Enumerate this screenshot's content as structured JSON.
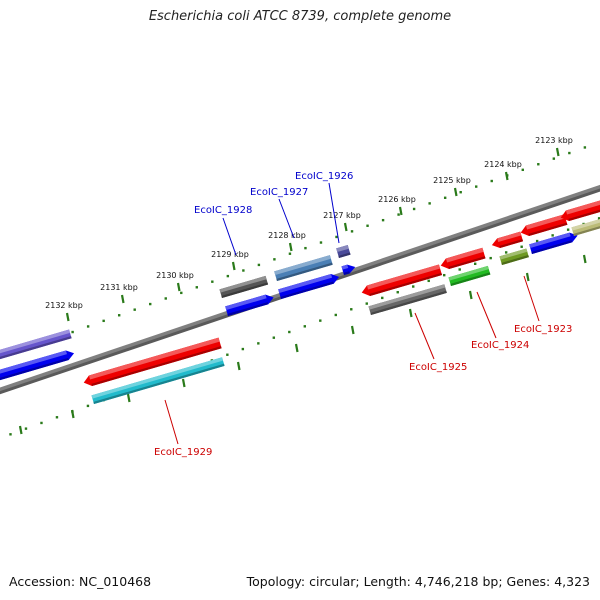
{
  "title": "Escherichia coli ATCC 8739, complete genome",
  "footer": {
    "accession": "Accession: NC_010468",
    "topology": "Topology: circular; Length: 4,746,218 bp; Genes: 4,323"
  },
  "scale_ticks": [
    "2123 kbp",
    "2124 kbp",
    "2125 kbp",
    "2126 kbp",
    "2127 kbp",
    "2128 kbp",
    "2129 kbp",
    "2130 kbp",
    "2131 kbp",
    "2132 kbp"
  ],
  "genes": [
    {
      "label": "EcoIC_1923",
      "label_color": "#cc0000"
    },
    {
      "label": "EcoIC_1924",
      "label_color": "#cc0000"
    },
    {
      "label": "EcoIC_1925",
      "label_color": "#cc0000"
    },
    {
      "label": "EcoIC_1926",
      "label_color": "#0000cc"
    },
    {
      "label": "EcoIC_1927",
      "label_color": "#0000cc"
    },
    {
      "label": "EcoIC_1928",
      "label_color": "#0000cc"
    },
    {
      "label": "EcoIC_1929",
      "label_color": "#cc0000"
    }
  ],
  "colors": {
    "backbone": "#808080",
    "scale_dots": "#2a7a1a",
    "forward_label": "#0000cc",
    "reverse_label": "#cc0000"
  }
}
